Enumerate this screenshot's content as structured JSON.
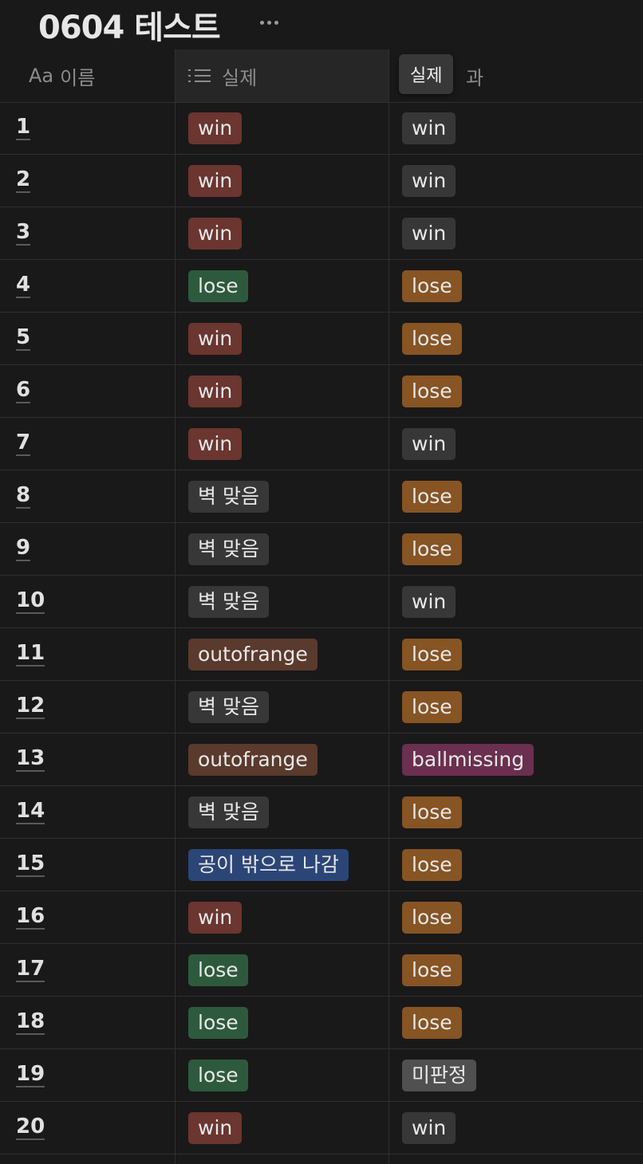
{
  "page": {
    "title": "0604 테스트"
  },
  "columns": {
    "name": {
      "icon": "Aa",
      "label": "이름"
    },
    "actual": {
      "label": "실제"
    },
    "result": {
      "label_suffix": "과"
    }
  },
  "tooltip": {
    "text": "실제"
  },
  "tag_colors": {
    "win_red": "#6b3530",
    "win_gray": "#373737",
    "lose_green": "#2d5a3d",
    "lose_orange": "#875424",
    "gray": "#373737",
    "brown": "#5a3a2c",
    "blue": "#2b4577",
    "purple": "#6b2f4f",
    "dark_gray": "#505050"
  },
  "rows": [
    {
      "name": "1",
      "actual": "win",
      "result": "win"
    },
    {
      "name": "2",
      "actual": "win",
      "result": "win"
    },
    {
      "name": "3",
      "actual": "win",
      "result": "win"
    },
    {
      "name": "4",
      "actual": "lose",
      "result": "lose"
    },
    {
      "name": "5",
      "actual": "win",
      "result": "lose"
    },
    {
      "name": "6",
      "actual": "win",
      "result": "lose"
    },
    {
      "name": "7",
      "actual": "win",
      "result": "win"
    },
    {
      "name": "8",
      "actual": "벽 맞음",
      "result": "lose"
    },
    {
      "name": "9",
      "actual": "벽 맞음",
      "result": "lose"
    },
    {
      "name": "10",
      "actual": "벽 맞음",
      "result": "win"
    },
    {
      "name": "11",
      "actual": "outofrange",
      "result": "lose"
    },
    {
      "name": "12",
      "actual": "벽 맞음",
      "result": "lose"
    },
    {
      "name": "13",
      "actual": "outofrange",
      "result": "ballmissing"
    },
    {
      "name": "14",
      "actual": "벽 맞음",
      "result": "lose"
    },
    {
      "name": "15",
      "actual": "공이 밖으로 나감",
      "result": "lose"
    },
    {
      "name": "16",
      "actual": "win",
      "result": "lose"
    },
    {
      "name": "17",
      "actual": "lose",
      "result": "lose"
    },
    {
      "name": "18",
      "actual": "lose",
      "result": "lose"
    },
    {
      "name": "19",
      "actual": "lose",
      "result": "미판정"
    },
    {
      "name": "20",
      "actual": "win",
      "result": "win"
    }
  ]
}
